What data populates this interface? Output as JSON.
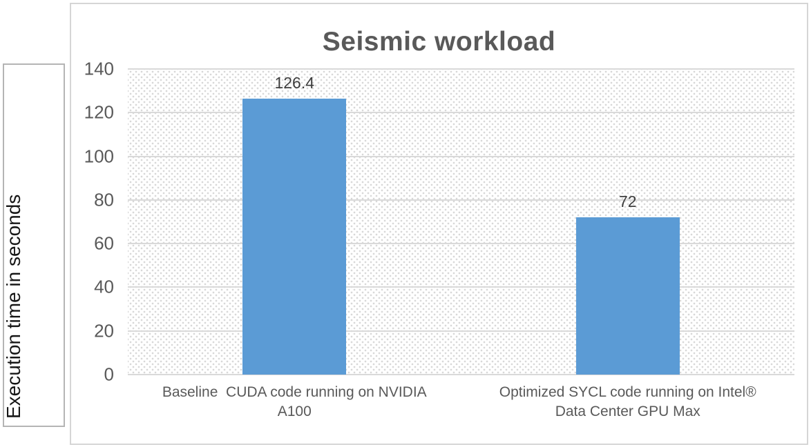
{
  "chart_data": {
    "type": "bar",
    "title": "Seismic workload",
    "ylabel": "Execution time in seconds",
    "xlabel": "",
    "categories": [
      "Baseline  CUDA code running on NVIDIA\nA100",
      "Optimized SYCL code running on Intel®\nData Center GPU Max"
    ],
    "values": [
      126.4,
      72
    ],
    "value_labels": [
      "126.4",
      "72"
    ],
    "ylim": [
      0,
      140
    ],
    "yticks": [
      0,
      20,
      40,
      60,
      80,
      100,
      120,
      140
    ],
    "grid": true,
    "legend": "none",
    "colors": {
      "bar_fill": "#5b9bd5",
      "title_text": "#595959",
      "axis_tick_text": "#595959",
      "category_text": "#595959",
      "data_label_text": "#3d3d3d",
      "gridline": "#d9d9d9",
      "chart_border": "#d5d5d5",
      "textbox_border": "#b4b4b4",
      "pattern_dots": "#d8d8d8"
    }
  }
}
